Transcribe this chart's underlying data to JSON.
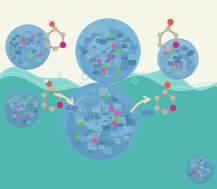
{
  "background_top": "#f5f5e8",
  "background_water_top": "#a8d8d0",
  "background_water_mid": "#5bb8b0",
  "background_water_bottom": "#3aa09a",
  "particle_color_main": "#7ab0d4",
  "particle_color_highlight": "#5a90b4",
  "particle_accent_pink": "#d060a0",
  "particle_accent_green": "#70c060",
  "arrow_color": "#e8e0c0",
  "molecule_bond_color": "#b0a090",
  "molecule_carbon_color": "#c8b8a0",
  "molecule_oxygen_color": "#e06050",
  "molecule_highlight_color": "#c03080",
  "o2_label_color": "#5080c0",
  "wave_color": "#7fcfca",
  "wave_highlight": "#a8e8e0",
  "figsize": [
    2.17,
    1.89
  ],
  "dpi": 100
}
